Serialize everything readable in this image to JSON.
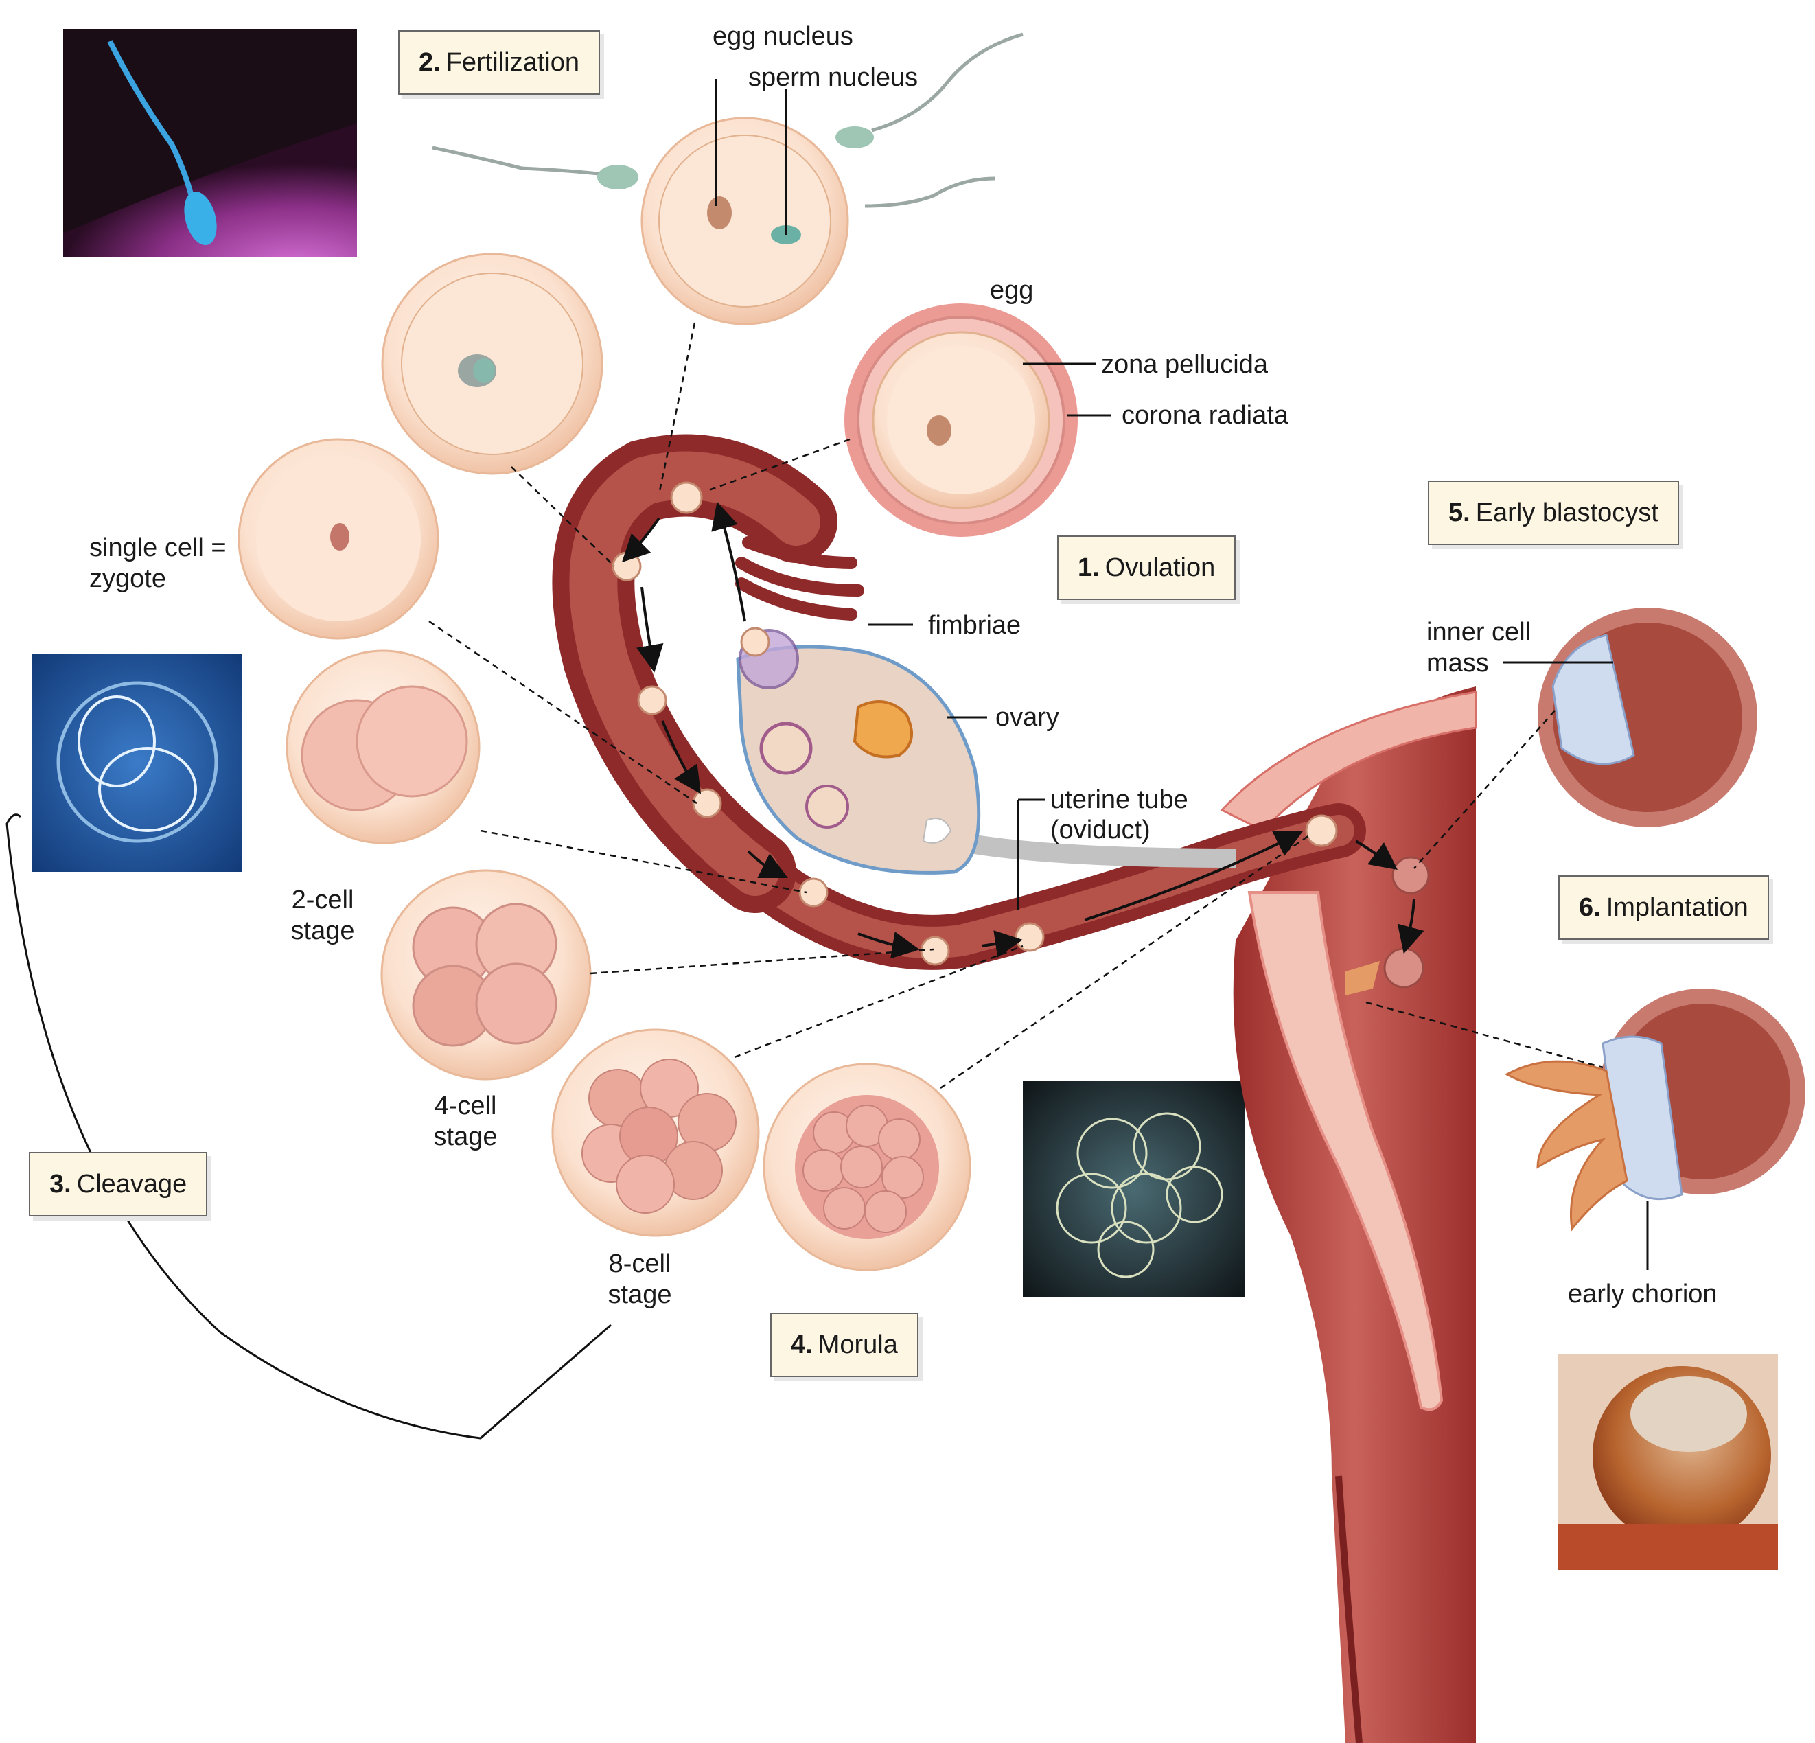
{
  "stages": {
    "ovulation": {
      "num": "1.",
      "text": "Ovulation"
    },
    "fertilization": {
      "num": "2.",
      "text": "Fertilization"
    },
    "cleavage": {
      "num": "3.",
      "text": "Cleavage"
    },
    "morula": {
      "num": "4.",
      "text": "Morula"
    },
    "early_blastocyst": {
      "num": "5.",
      "text": "Early blastocyst"
    },
    "implantation": {
      "num": "6.",
      "text": "Implantation"
    }
  },
  "labels": {
    "egg_nucleus": "egg nucleus",
    "sperm_nucleus": "sperm nucleus",
    "egg": "egg",
    "zona_pellucida": "zona pellucida",
    "corona_radiata": "corona radiata",
    "single_cell_line1": "single cell =",
    "single_cell_line2": "zygote",
    "fimbriae": "fimbriae",
    "ovary": "ovary",
    "uterine_tube_line1": "uterine tube",
    "uterine_tube_line2": "(oviduct)",
    "two_cell_line1": "2-cell",
    "two_cell_line2": "stage",
    "four_cell_line1": "4-cell",
    "four_cell_line2": "stage",
    "eight_cell_line1": "8-cell",
    "eight_cell_line2": "stage",
    "inner_cell_line1": "inner cell",
    "inner_cell_line2": "mass",
    "early_chorion": "early chorion"
  },
  "colors": {
    "tissue_dark": "#8e2a2a",
    "tissue_mid": "#b5524a",
    "tissue_light": "#f2b9aa",
    "cell_fill": "#fbe3d2",
    "cell_edge": "#e6b193",
    "ovary_fill": "#e8d3c4",
    "ovary_edge": "#6f9bc8",
    "blastocyst_icm": "#cfdcf0",
    "label_box_fill": "#fdf6e3",
    "photo_blue": "#1f4f98",
    "photo_dark": "#1a1a1a",
    "sperm_fill": "#8fc0b5"
  }
}
